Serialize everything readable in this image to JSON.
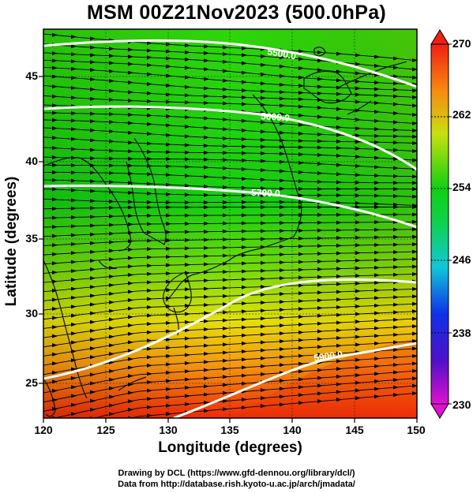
{
  "title": "MSM 00Z21Nov2023 (500.0hPa)",
  "axes": {
    "xlabel": "Longitude (degrees)",
    "ylabel": "Latitude  (degrees)",
    "xticks": [
      "120",
      "125",
      "130",
      "135",
      "140",
      "145",
      "150"
    ],
    "yticks": [
      "25",
      "30",
      "35",
      "40",
      "45"
    ],
    "xlim": [
      120,
      150
    ],
    "ylim": [
      22.4,
      47.6
    ]
  },
  "colorbar": {
    "ticks": [
      "270",
      "262",
      "254",
      "246",
      "238",
      "230"
    ],
    "range": [
      230,
      270
    ],
    "units_hint": "temperature (K)"
  },
  "contours": {
    "labels": [
      "5500.0",
      "5600.0",
      "5700.0",
      "5900.0"
    ],
    "levels": [
      {
        "value": 5500,
        "lat_at_west": 46.9,
        "lat_at_east": 43.8
      },
      {
        "value": 5600,
        "lat_at_west": 43.1,
        "lat_at_east": 40.5
      },
      {
        "value": 5700,
        "lat_at_west": 38.1,
        "lat_at_east": 36.1
      },
      {
        "value": 5800,
        "lat_at_west": 25.5,
        "lat_at_east": 32.2
      },
      {
        "value": 5900,
        "lat_at_west": 22.4,
        "lat_at_east": 28.1
      }
    ]
  },
  "credits": {
    "line1": "Drawing by DCL (https://www.gfd-dennou.org/library/dcl/)",
    "line2": "Data from http://database.rish.kyoto-u.ac.jp/arch/jmadata/"
  },
  "colors": {
    "cold": "#d400d4",
    "mid": "#00c800",
    "warm": "#e82000",
    "contour": "#ffffff",
    "arrows": "#000000"
  }
}
